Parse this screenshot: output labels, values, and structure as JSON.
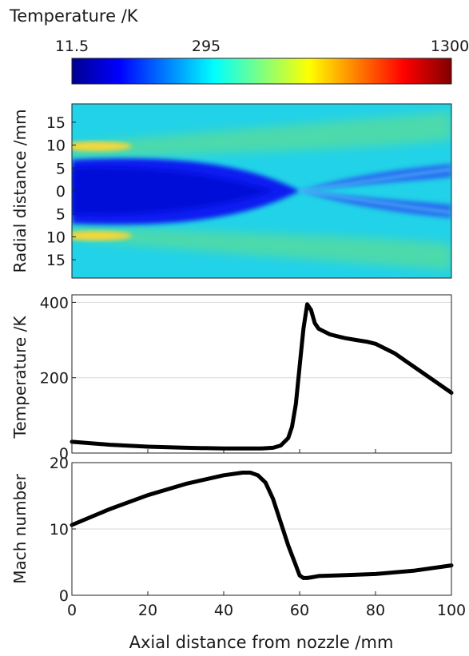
{
  "colorbar": {
    "title": "Temperature /K",
    "tick_labels": [
      "11.5",
      "295",
      "1300"
    ],
    "tick_values": [
      11.5,
      295,
      1300
    ],
    "colormap": "jet"
  },
  "heatmap": {
    "ylabel": "Radial distance /mm",
    "ytick_labels": [
      "15",
      "10",
      "5",
      "0",
      "5",
      "10",
      "15"
    ],
    "ytick_values": [
      15,
      10,
      5,
      0,
      -5,
      -10,
      -15
    ],
    "xlim": [
      0,
      100
    ],
    "ylim": [
      -19,
      19
    ]
  },
  "x_axis": {
    "label": "Axial distance from nozzle /mm",
    "tick_labels": [
      "0",
      "20",
      "40",
      "60",
      "80",
      "100"
    ],
    "tick_values": [
      0,
      20,
      40,
      60,
      80,
      100
    ]
  },
  "chart_data": [
    {
      "type": "heatmap",
      "xlabel": "",
      "ylabel": "Radial distance /mm",
      "xlim": [
        0,
        100
      ],
      "ylim": [
        -19,
        19
      ],
      "colormap": "jet",
      "color_range": [
        11.5,
        1300
      ]
    },
    {
      "type": "line",
      "xlabel": "",
      "ylabel": "Temperature /K",
      "xlim": [
        0,
        100
      ],
      "ylim": [
        0,
        420
      ],
      "yticks": [
        0,
        200,
        400
      ],
      "grid": true,
      "series": [
        {
          "color": "#000000",
          "x": [
            0,
            10,
            20,
            30,
            40,
            50,
            53,
            55,
            57,
            58,
            59,
            60,
            61,
            62,
            63,
            64,
            65,
            66,
            68,
            70,
            72,
            75,
            78,
            80,
            82,
            85,
            90,
            95,
            100
          ],
          "y": [
            30,
            22,
            17,
            14,
            12,
            12,
            14,
            20,
            40,
            70,
            130,
            230,
            330,
            395,
            380,
            345,
            330,
            325,
            315,
            310,
            305,
            300,
            295,
            290,
            280,
            265,
            230,
            195,
            160
          ]
        }
      ]
    },
    {
      "type": "line",
      "xlabel": "Axial distance from nozzle /mm",
      "ylabel": "Mach number",
      "xlim": [
        0,
        100
      ],
      "ylim": [
        0,
        20
      ],
      "yticks": [
        0,
        10,
        20
      ],
      "grid": true,
      "series": [
        {
          "color": "#000000",
          "x": [
            0,
            10,
            20,
            30,
            40,
            45,
            47,
            49,
            51,
            53,
            55,
            57,
            59,
            60,
            61,
            62,
            63,
            65,
            70,
            80,
            90,
            100
          ],
          "y": [
            10.6,
            13.0,
            15.1,
            16.8,
            18.1,
            18.5,
            18.5,
            18.1,
            17.0,
            14.5,
            11.0,
            7.5,
            4.5,
            3.0,
            2.6,
            2.6,
            2.7,
            2.9,
            3.0,
            3.2,
            3.7,
            4.5
          ]
        }
      ]
    }
  ]
}
